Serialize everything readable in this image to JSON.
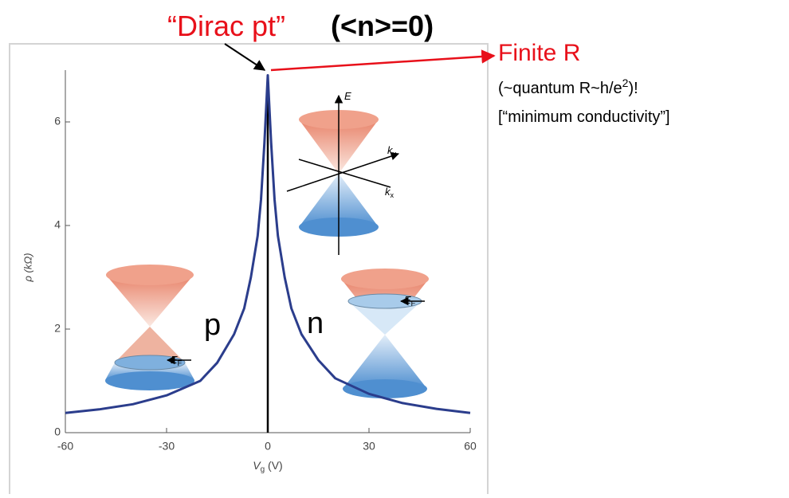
{
  "chart_data": {
    "type": "line",
    "x": [
      -60,
      -50,
      -40,
      -30,
      -20,
      -15,
      -10,
      -7,
      -5,
      -3,
      -2,
      -1,
      0,
      1,
      2,
      3,
      5,
      7,
      10,
      15,
      20,
      30,
      40,
      50,
      60
    ],
    "values": [
      0.38,
      0.45,
      0.55,
      0.72,
      1.0,
      1.35,
      1.9,
      2.4,
      3.0,
      3.8,
      4.5,
      5.6,
      6.9,
      5.6,
      4.5,
      3.8,
      3.0,
      2.4,
      1.9,
      1.4,
      1.05,
      0.75,
      0.57,
      0.46,
      0.38
    ],
    "color": "#2b3d8c",
    "xlim": [
      -60,
      60
    ],
    "xticks": [
      -60,
      -30,
      0,
      30,
      60
    ],
    "ylim": [
      0,
      7
    ],
    "yticks": [
      0,
      2,
      4,
      6
    ],
    "ylabel": "ρ (kΩ)",
    "xlabel": {
      "text": "V",
      "sub": "g",
      "after": " (V)"
    },
    "annotations": [
      {
        "text": "“Dirac pt”"
      },
      {
        "text": "(<n>=0)"
      },
      {
        "text": "Finite R"
      },
      {
        "text": "(~quantum R~h/e",
        "sup": "2",
        "after": ")!"
      },
      {
        "text": "[“minimum conductivity”]"
      },
      {
        "text": "p"
      },
      {
        "text": "n"
      },
      {
        "text": "E"
      },
      {
        "text": "k",
        "sub": "y"
      },
      {
        "text": "k",
        "sub": "x"
      },
      {
        "text": "E",
        "sub": "F"
      },
      {
        "text": "E",
        "sub": "F"
      }
    ]
  }
}
